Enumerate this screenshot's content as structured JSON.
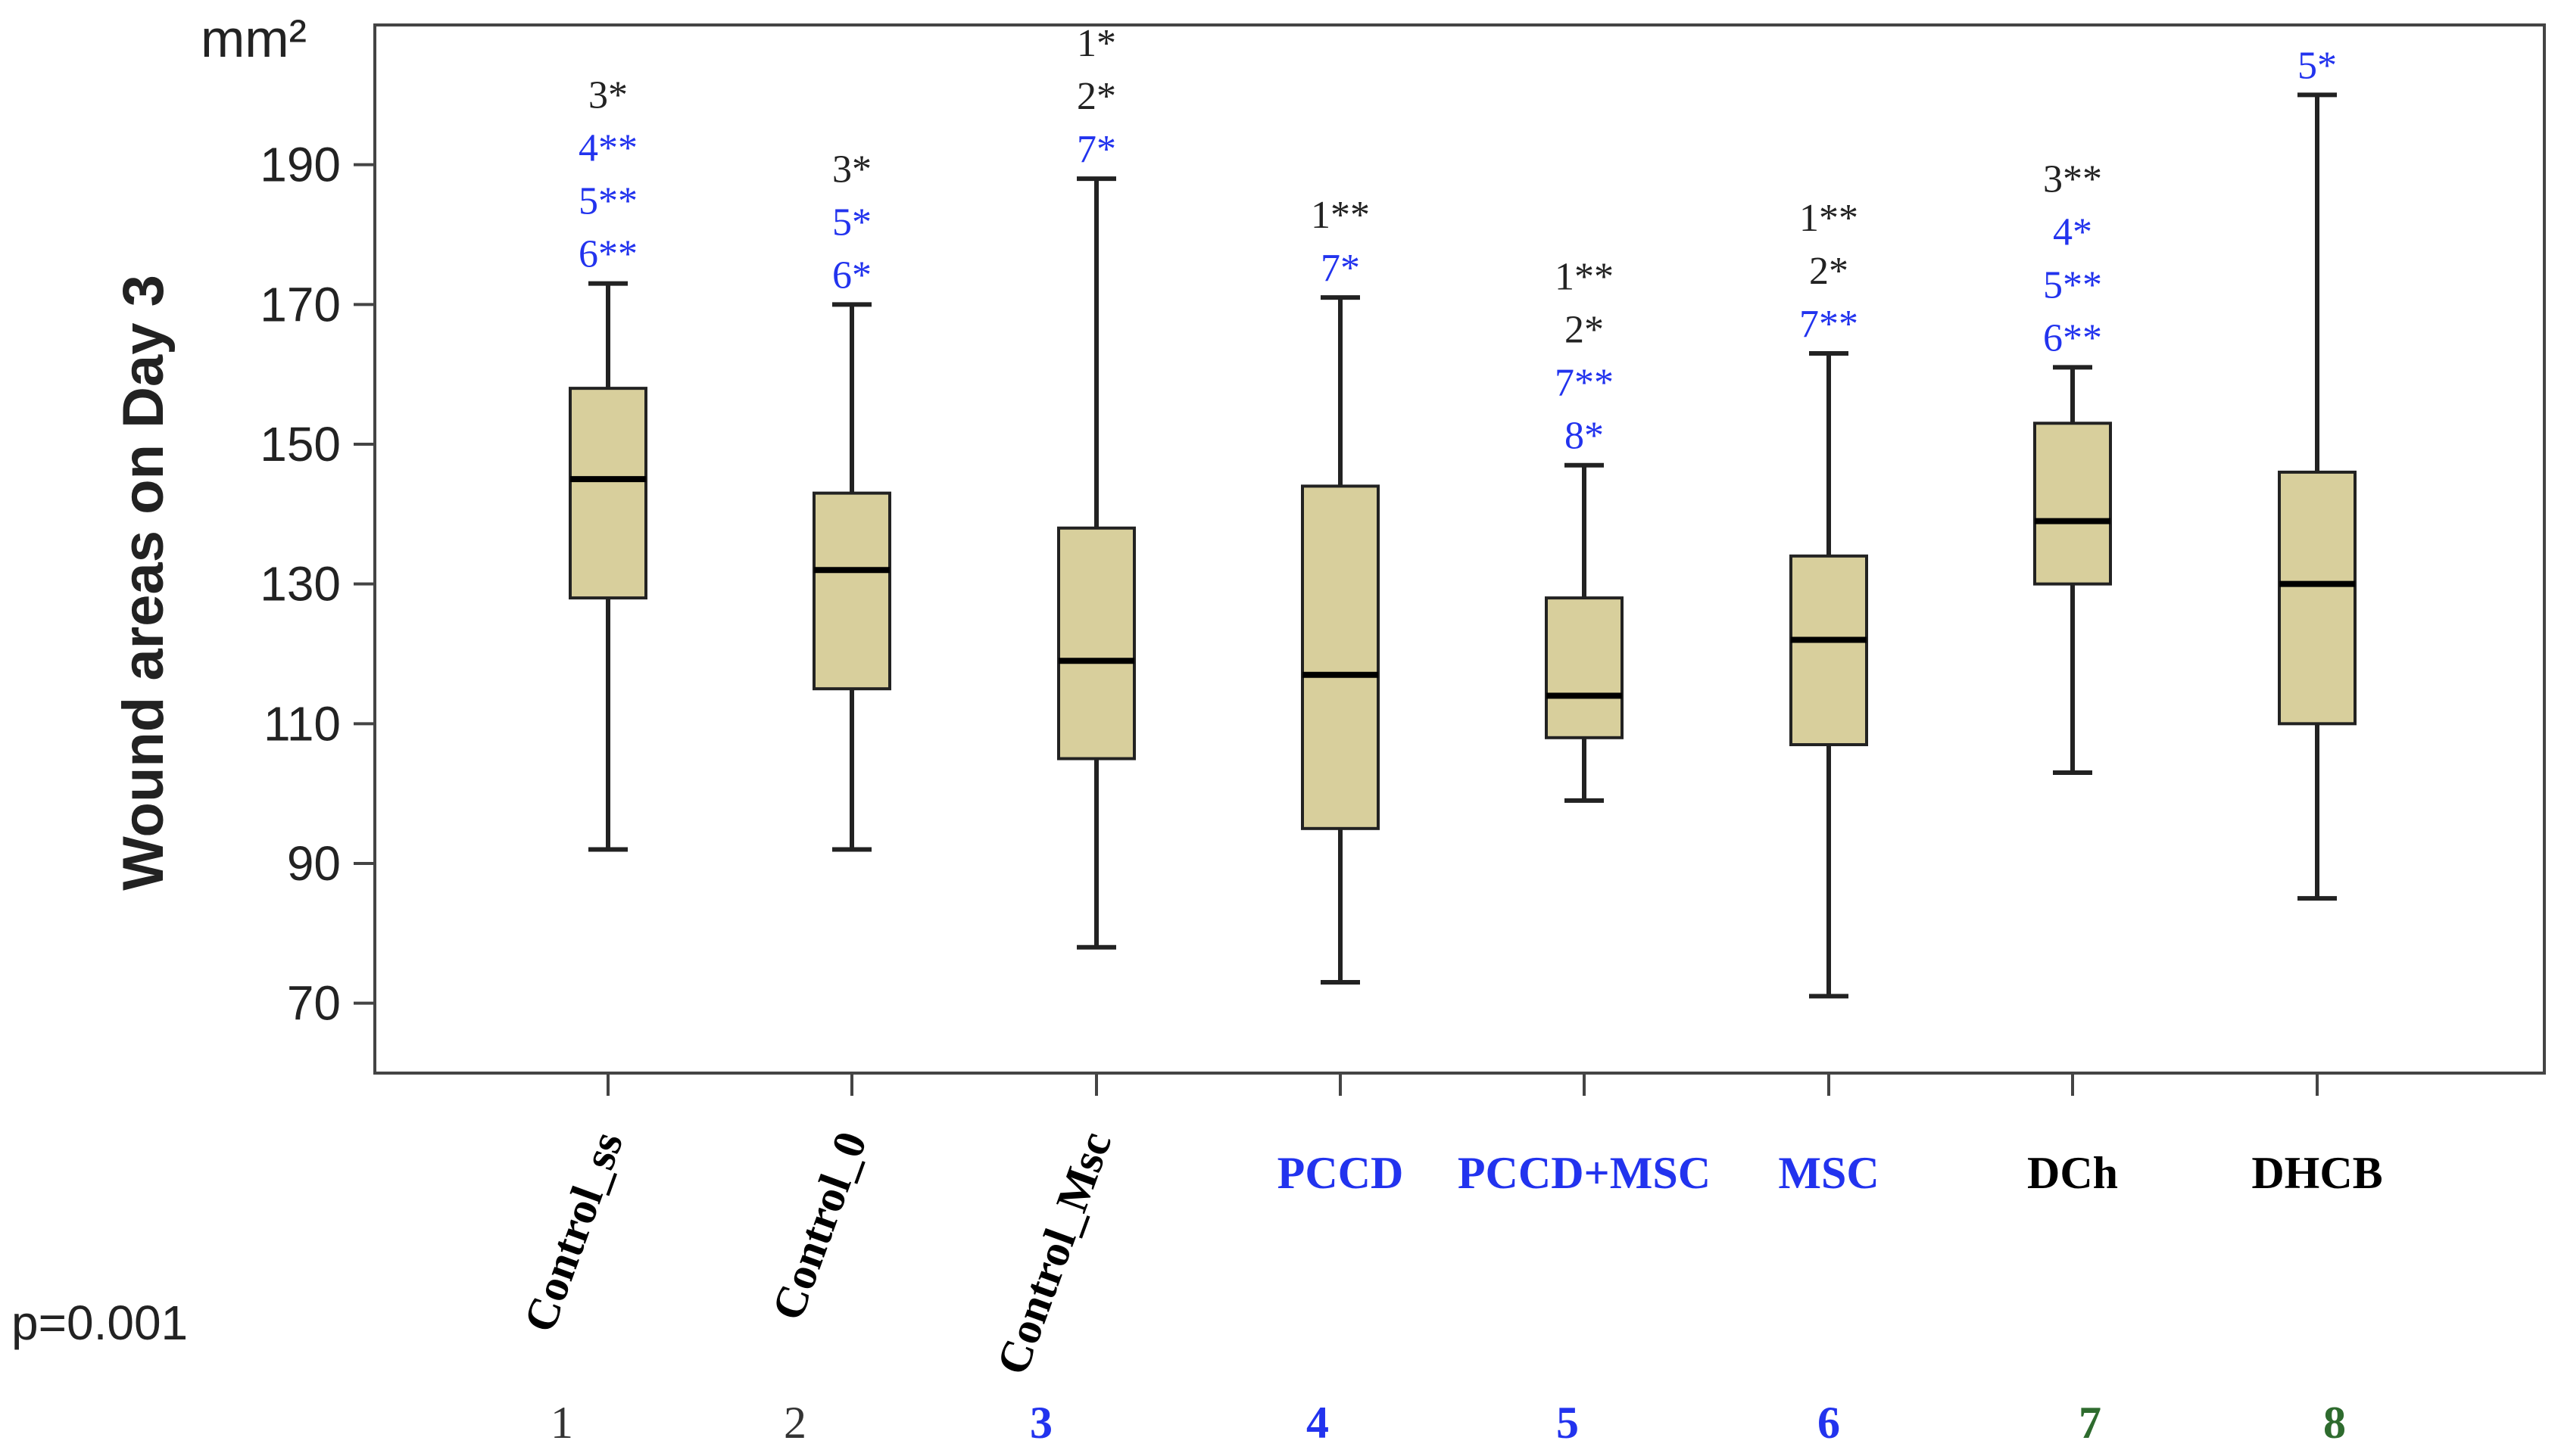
{
  "chart_data": {
    "type": "boxplot",
    "ylabel": "Wound areas on Day 3",
    "unit": "mm²",
    "ylim": [
      60,
      210
    ],
    "yticks": [
      70,
      90,
      110,
      130,
      150,
      170,
      190
    ],
    "p_value_label": "p=0.001",
    "groups": [
      {
        "label": "Control_ss",
        "number": "1",
        "label_color": "#000000",
        "number_color": "#333333",
        "rotated": true,
        "min": 92,
        "q1": 128,
        "median": 145,
        "q3": 158,
        "max": 173,
        "annotations": [
          {
            "text": "3*",
            "color": "#222222"
          },
          {
            "text": "4**",
            "color": "#2233ee"
          },
          {
            "text": "5**",
            "color": "#2233ee"
          },
          {
            "text": "6**",
            "color": "#2233ee"
          }
        ]
      },
      {
        "label": "Control_0",
        "number": "2",
        "label_color": "#000000",
        "number_color": "#333333",
        "rotated": true,
        "min": 92,
        "q1": 115,
        "median": 132,
        "q3": 143,
        "max": 170,
        "annotations": [
          {
            "text": "3*",
            "color": "#222222"
          },
          {
            "text": "5*",
            "color": "#2233ee"
          },
          {
            "text": "6*",
            "color": "#2233ee"
          }
        ]
      },
      {
        "label": "Control_Msc",
        "number": "3",
        "label_color": "#000000",
        "number_color": "#2233ee",
        "rotated": true,
        "min": 78,
        "q1": 105,
        "median": 119,
        "q3": 138,
        "max": 188,
        "annotations": [
          {
            "text": "1*",
            "color": "#222222"
          },
          {
            "text": "2*",
            "color": "#222222"
          },
          {
            "text": "7*",
            "color": "#2233ee"
          }
        ]
      },
      {
        "label": "PCCD",
        "number": "4",
        "label_color": "#2233ee",
        "number_color": "#2233ee",
        "rotated": false,
        "min": 73,
        "q1": 95,
        "median": 117,
        "q3": 144,
        "max": 171,
        "annotations": [
          {
            "text": "1**",
            "color": "#222222"
          },
          {
            "text": "7*",
            "color": "#2233ee"
          }
        ]
      },
      {
        "label": "PCCD+MSC",
        "number": "5",
        "label_color": "#2233ee",
        "number_color": "#2233ee",
        "rotated": false,
        "min": 99,
        "q1": 108,
        "median": 114,
        "q3": 128,
        "max": 147,
        "annotations": [
          {
            "text": "1**",
            "color": "#222222"
          },
          {
            "text": "2*",
            "color": "#222222"
          },
          {
            "text": "7**",
            "color": "#2233ee"
          },
          {
            "text": "8*",
            "color": "#2233ee"
          }
        ]
      },
      {
        "label": "MSC",
        "number": "6",
        "label_color": "#2233ee",
        "number_color": "#2233ee",
        "rotated": false,
        "min": 71,
        "q1": 107,
        "median": 122,
        "q3": 134,
        "max": 163,
        "annotations": [
          {
            "text": "1**",
            "color": "#222222"
          },
          {
            "text": "2*",
            "color": "#222222"
          },
          {
            "text": "7**",
            "color": "#2233ee"
          }
        ]
      },
      {
        "label": "DCh",
        "number": "7",
        "label_color": "#000000",
        "number_color": "#2e6b2e",
        "rotated": false,
        "min": 103,
        "q1": 130,
        "median": 139,
        "q3": 153,
        "max": 161,
        "annotations": [
          {
            "text": "3**",
            "color": "#222222"
          },
          {
            "text": "4*",
            "color": "#2233ee"
          },
          {
            "text": "5**",
            "color": "#2233ee"
          },
          {
            "text": "6**",
            "color": "#2233ee"
          }
        ]
      },
      {
        "label": "DHCB",
        "number": "8",
        "label_color": "#000000",
        "number_color": "#2e6b2e",
        "rotated": false,
        "min": 85,
        "q1": 110,
        "median": 130,
        "q3": 146,
        "max": 200,
        "annotations": [
          {
            "text": "5*",
            "color": "#2233ee"
          }
        ]
      }
    ],
    "colors": {
      "box_fill": "#d8cf9c",
      "box_stroke": "#222222",
      "frame": "#444444"
    }
  }
}
